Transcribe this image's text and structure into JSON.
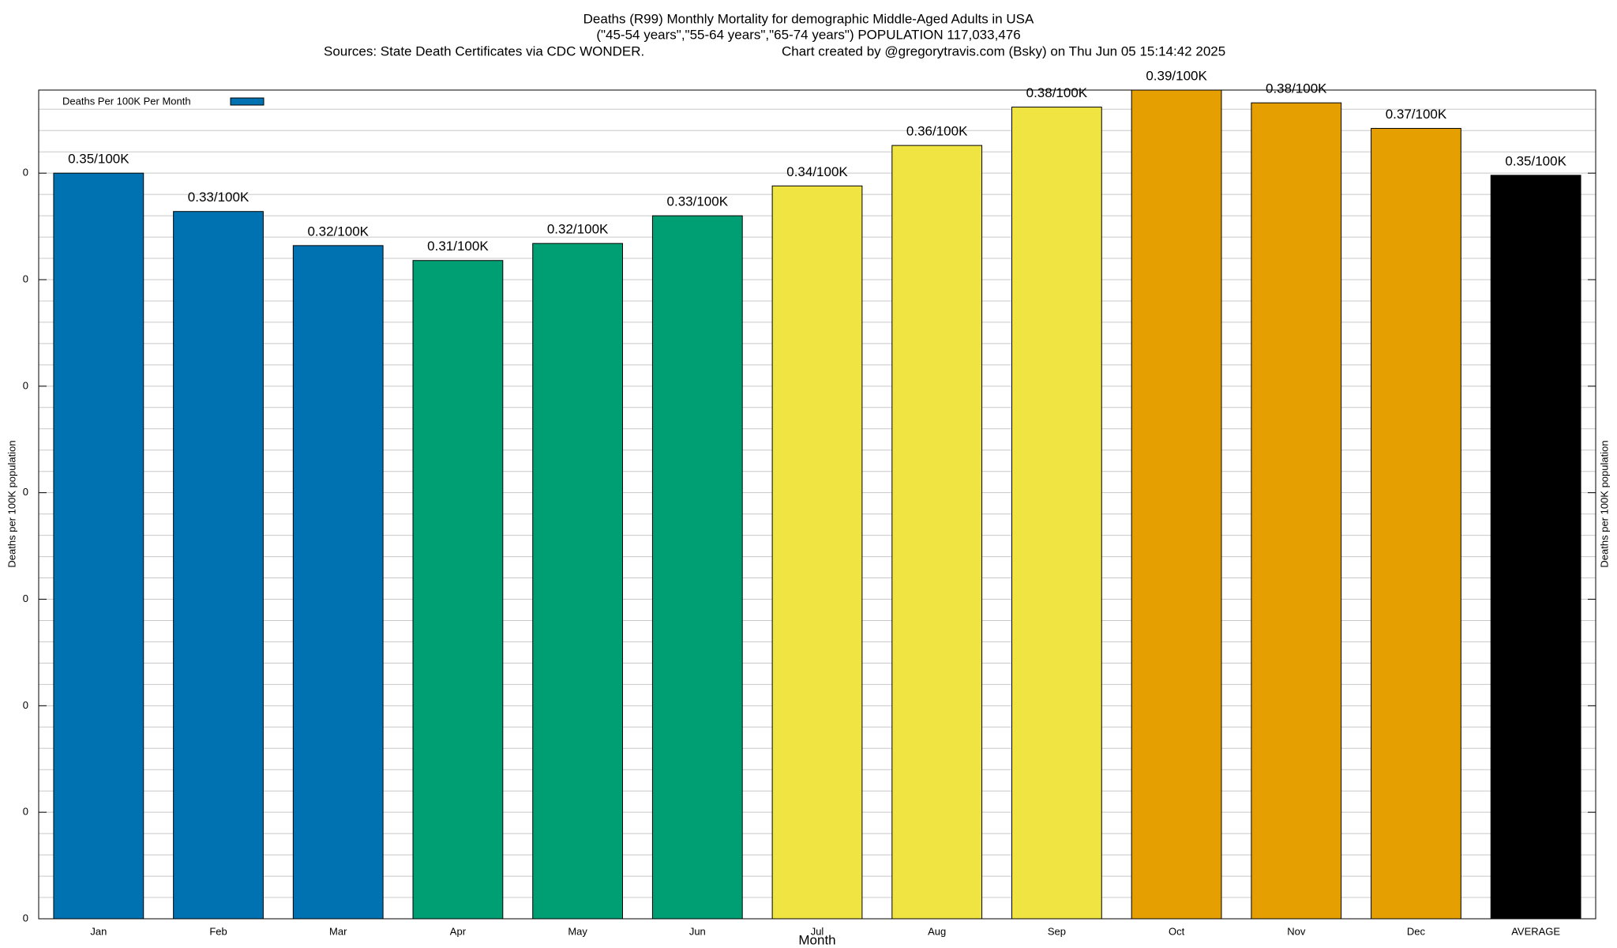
{
  "chart_data": {
    "type": "bar",
    "title": "Deaths (R99) Monthly Mortality for demographic Middle-Aged Adults in USA",
    "subtitle": [
      "(\"45-54 years\",\"55-64 years\",\"65-74 years\") POPULATION 117,033,476",
      "Sources: State Death Certificates via CDC WONDER.",
      "Chart created by @gregorytravis.com (Bsky) on Thu Jun 05 15:14:42 2025"
    ],
    "x_label": "Month",
    "y_label": "Deaths per 100K population",
    "y2_label": "Deaths per 100K population",
    "categories": [
      "Jan",
      "Feb",
      "Mar",
      "Apr",
      "May",
      "Jun",
      "Jul",
      "Aug",
      "Sep",
      "Oct",
      "Nov",
      "Dec",
      "AVERAGE"
    ],
    "series": [
      {
        "name": "Deaths Per 100K Per Month",
        "color": "#0072b2",
        "values": [
          0.35,
          0.332,
          0.316,
          0.309,
          0.317,
          0.33,
          0.344,
          0.363,
          0.381,
          0.389,
          0.383,
          0.371,
          0.349
        ],
        "value_labels": [
          "0.35/100K",
          "0.33/100K",
          "0.32/100K",
          "0.31/100K",
          "0.32/100K",
          "0.33/100K",
          "0.34/100K",
          "0.36/100K",
          "0.38/100K",
          "0.39/100K",
          "0.38/100K",
          "0.37/100K",
          "0.35/100K"
        ],
        "colors": [
          "#0072b2",
          "#0072b2",
          "#0072b2",
          "#009e73",
          "#009e73",
          "#009e73",
          "#f0e442",
          "#f0e442",
          "#f0e442",
          "#e69f00",
          "#e69f00",
          "#e69f00",
          "#000000"
        ]
      }
    ],
    "ylim": [
      0,
      0.389
    ],
    "yticks": [
      0,
      {
        "value": 0.05,
        "label": "0"
      },
      {
        "value": 0.1,
        "label": "0"
      },
      {
        "value": 0.15,
        "label": "0"
      },
      {
        "value": 0.2,
        "label": "0"
      },
      {
        "value": 0.25,
        "label": "0"
      },
      {
        "value": 0.3,
        "label": "0"
      },
      {
        "value": 0.35,
        "label": "0"
      }
    ],
    "minor_yticks": [
      0.01,
      0.02,
      0.03,
      0.04,
      0.06,
      0.07,
      0.08,
      0.09,
      0.11,
      0.12,
      0.13,
      0.14,
      0.16,
      0.17,
      0.18,
      0.19,
      0.21,
      0.22,
      0.23,
      0.24,
      0.26,
      0.27,
      0.28,
      0.29,
      0.31,
      0.32,
      0.33,
      0.34,
      0.36,
      0.37,
      0.38
    ],
    "grid": true,
    "legend": "upper left"
  }
}
